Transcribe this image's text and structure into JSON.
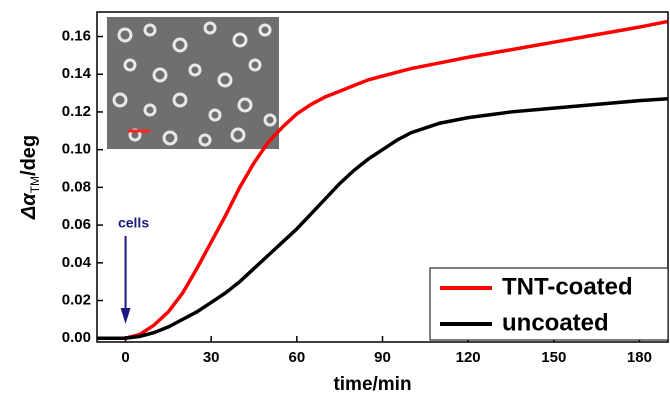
{
  "chart_data": {
    "type": "line",
    "xlabel": "time/min",
    "ylabel": {
      "main": "Δα",
      "sub": "TM",
      "unit": "/deg"
    },
    "annotation": "cells",
    "annotation_x": 0,
    "x": [
      -10,
      0,
      5,
      10,
      15,
      20,
      25,
      30,
      35,
      40,
      45,
      50,
      55,
      60,
      65,
      70,
      75,
      80,
      85,
      90,
      95,
      100,
      110,
      120,
      135,
      150,
      165,
      180,
      190
    ],
    "series": [
      {
        "name": "TNT-coated",
        "color": "#ff0000",
        "values": [
          0,
          0,
          0.002,
          0.007,
          0.014,
          0.024,
          0.037,
          0.051,
          0.065,
          0.08,
          0.093,
          0.104,
          0.112,
          0.119,
          0.124,
          0.128,
          0.131,
          0.134,
          0.137,
          0.139,
          0.141,
          0.143,
          0.146,
          0.149,
          0.153,
          0.157,
          0.161,
          0.165,
          0.168
        ]
      },
      {
        "name": "uncoated",
        "color": "#000000",
        "values": [
          0,
          0,
          0.001,
          0.003,
          0.006,
          0.01,
          0.014,
          0.019,
          0.024,
          0.03,
          0.037,
          0.044,
          0.051,
          0.058,
          0.066,
          0.074,
          0.082,
          0.089,
          0.095,
          0.1,
          0.105,
          0.109,
          0.114,
          0.117,
          0.12,
          0.122,
          0.124,
          0.126,
          0.127
        ]
      }
    ],
    "xlim": [
      -10,
      190
    ],
    "xticks": [
      0,
      30,
      60,
      90,
      120,
      150,
      180
    ],
    "ylim": [
      -0.002,
      0.173
    ],
    "yticks": [
      {
        "value": 0,
        "label": "0.00"
      },
      {
        "value": 0.02,
        "label": "0.02"
      },
      {
        "value": 0.04,
        "label": "0.04"
      },
      {
        "value": 0.06,
        "label": "0.06"
      },
      {
        "value": 0.08,
        "label": "0.08"
      },
      {
        "value": 0.1,
        "label": "0.10"
      },
      {
        "value": 0.12,
        "label": "0.12"
      },
      {
        "value": 0.14,
        "label": "0.14"
      },
      {
        "value": 0.16,
        "label": "0.16"
      }
    ],
    "legend": "lower right"
  }
}
